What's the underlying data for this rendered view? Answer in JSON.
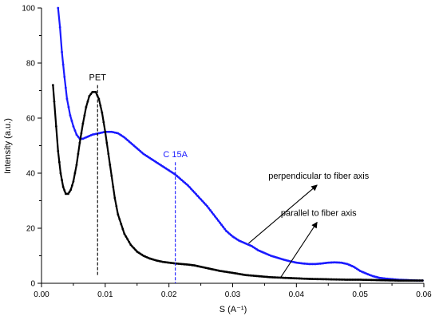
{
  "chart_data": {
    "type": "line",
    "title": "",
    "xlabel": "S (A⁻¹)",
    "ylabel": "Intensity (a.u.)",
    "xlim": [
      0.0,
      0.06
    ],
    "ylim": [
      0,
      100
    ],
    "x_ticks": [
      "0.00",
      "0.01",
      "0.02",
      "0.03",
      "0.04",
      "0.05",
      "0.06"
    ],
    "y_ticks": [
      "0",
      "20",
      "40",
      "60",
      "80",
      "100"
    ],
    "grid": false,
    "series": [
      {
        "name": "perpendicular to fiber axis",
        "color": "#1a1aff",
        "x": [
          0.0026,
          0.0029,
          0.0032,
          0.0036,
          0.004,
          0.0045,
          0.005,
          0.0055,
          0.006,
          0.0065,
          0.007,
          0.0075,
          0.008,
          0.009,
          0.01,
          0.011,
          0.012,
          0.013,
          0.014,
          0.015,
          0.016,
          0.017,
          0.018,
          0.019,
          0.02,
          0.021,
          0.022,
          0.023,
          0.024,
          0.025,
          0.026,
          0.027,
          0.028,
          0.029,
          0.03,
          0.031,
          0.032,
          0.033,
          0.034,
          0.035,
          0.036,
          0.037,
          0.038,
          0.039,
          0.04,
          0.041,
          0.042,
          0.043,
          0.044,
          0.045,
          0.046,
          0.047,
          0.048,
          0.049,
          0.05,
          0.051,
          0.052,
          0.053,
          0.054,
          0.055,
          0.056,
          0.057,
          0.058,
          0.059,
          0.0598
        ],
        "y": [
          100,
          93,
          84,
          75,
          67,
          61,
          57,
          54,
          52.5,
          52.5,
          53,
          53.5,
          54,
          54.5,
          55,
          55,
          54.5,
          53,
          51,
          49,
          47,
          45.5,
          44,
          42.5,
          41,
          39.5,
          37.5,
          35.5,
          33,
          30.5,
          28,
          25,
          22,
          19,
          17,
          15.5,
          14.5,
          13.5,
          12,
          11,
          10,
          9.3,
          8.6,
          8,
          7.5,
          7.2,
          7,
          7,
          7.2,
          7.5,
          7.6,
          7.5,
          7,
          6,
          4.5,
          3.5,
          2.6,
          2,
          1.7,
          1.5,
          1.3,
          1.2,
          1.1,
          1,
          1
        ]
      },
      {
        "name": "parallel to fiber axis",
        "color": "#000000",
        "x": [
          0.0018,
          0.002,
          0.0023,
          0.0026,
          0.003,
          0.0034,
          0.0038,
          0.0042,
          0.0046,
          0.005,
          0.0055,
          0.006,
          0.0065,
          0.007,
          0.0075,
          0.008,
          0.0085,
          0.009,
          0.0095,
          0.01,
          0.0105,
          0.011,
          0.0115,
          0.012,
          0.013,
          0.014,
          0.015,
          0.016,
          0.017,
          0.018,
          0.019,
          0.02,
          0.021,
          0.022,
          0.023,
          0.024,
          0.025,
          0.026,
          0.027,
          0.028,
          0.03,
          0.032,
          0.034,
          0.036,
          0.038,
          0.04,
          0.042,
          0.044,
          0.046,
          0.048,
          0.05,
          0.052,
          0.054,
          0.056,
          0.058,
          0.0598
        ],
        "y": [
          72,
          66,
          57,
          48,
          40,
          35,
          32.5,
          32.5,
          34,
          37,
          43,
          51,
          58,
          64,
          68,
          69.5,
          69.5,
          67,
          62,
          55,
          47,
          39,
          31,
          25,
          18,
          14,
          11.5,
          10,
          9,
          8.3,
          7.8,
          7.5,
          7.2,
          7,
          6.8,
          6.5,
          6,
          5.5,
          5,
          4.5,
          3.8,
          3,
          2.6,
          2.2,
          2,
          1.8,
          1.6,
          1.5,
          1.4,
          1.3,
          1.3,
          1.2,
          1.1,
          1,
          1,
          1
        ]
      }
    ],
    "annotations": [
      {
        "text": "PET",
        "color": "#000000",
        "x": 0.0088,
        "line_top": 72,
        "line_bottom": 3
      },
      {
        "text": "C 15A",
        "color": "#1a1aff",
        "x": 0.021,
        "line_top": 44,
        "line_bottom": 0
      },
      {
        "text": "perpendicular to fiber axis",
        "color": "#000000",
        "label_x": 0.0435,
        "label_y": 38,
        "arrow_to_x": 0.0325,
        "arrow_to_y": 14.5
      },
      {
        "text": "parallel to fiber axis",
        "color": "#000000",
        "label_x": 0.0435,
        "label_y": 24.5,
        "arrow_to_x": 0.0375,
        "arrow_to_y": 2
      }
    ]
  }
}
